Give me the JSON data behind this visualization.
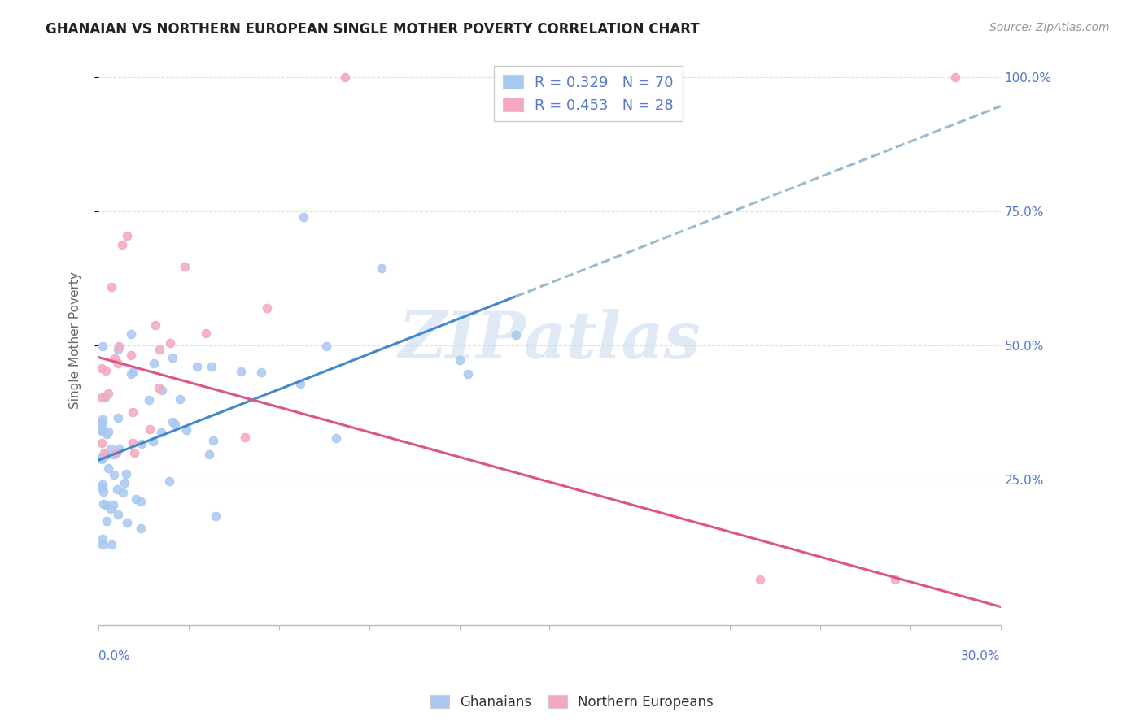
{
  "title": "GHANAIAN VS NORTHERN EUROPEAN SINGLE MOTHER POVERTY CORRELATION CHART",
  "source": "Source: ZipAtlas.com",
  "ylabel": "Single Mother Poverty",
  "legend_label1": "Ghanaians",
  "legend_label2": "Northern Europeans",
  "r1": 0.329,
  "n1": 70,
  "r2": 0.453,
  "n2": 28,
  "color1": "#a8c8f0",
  "color2": "#f4a8c0",
  "line_color1": "#4488cc",
  "line_color2": "#dd5588",
  "line_dash_color": "#99bbcc",
  "watermark": "ZIPatlas",
  "watermark_color": "#c8d8f0",
  "xlim": [
    0.0,
    0.3
  ],
  "ylim": [
    -0.02,
    1.04
  ],
  "yticks": [
    0.25,
    0.5,
    0.75,
    1.0
  ],
  "ytick_labels": [
    "25.0%",
    "50.0%",
    "75.0%",
    "100.0%"
  ],
  "grid_color": "#e0e0e0",
  "spine_color": "#bbbbbb",
  "title_fontsize": 12,
  "tick_label_color": "#5577cc",
  "axis_label_color": "#666666"
}
